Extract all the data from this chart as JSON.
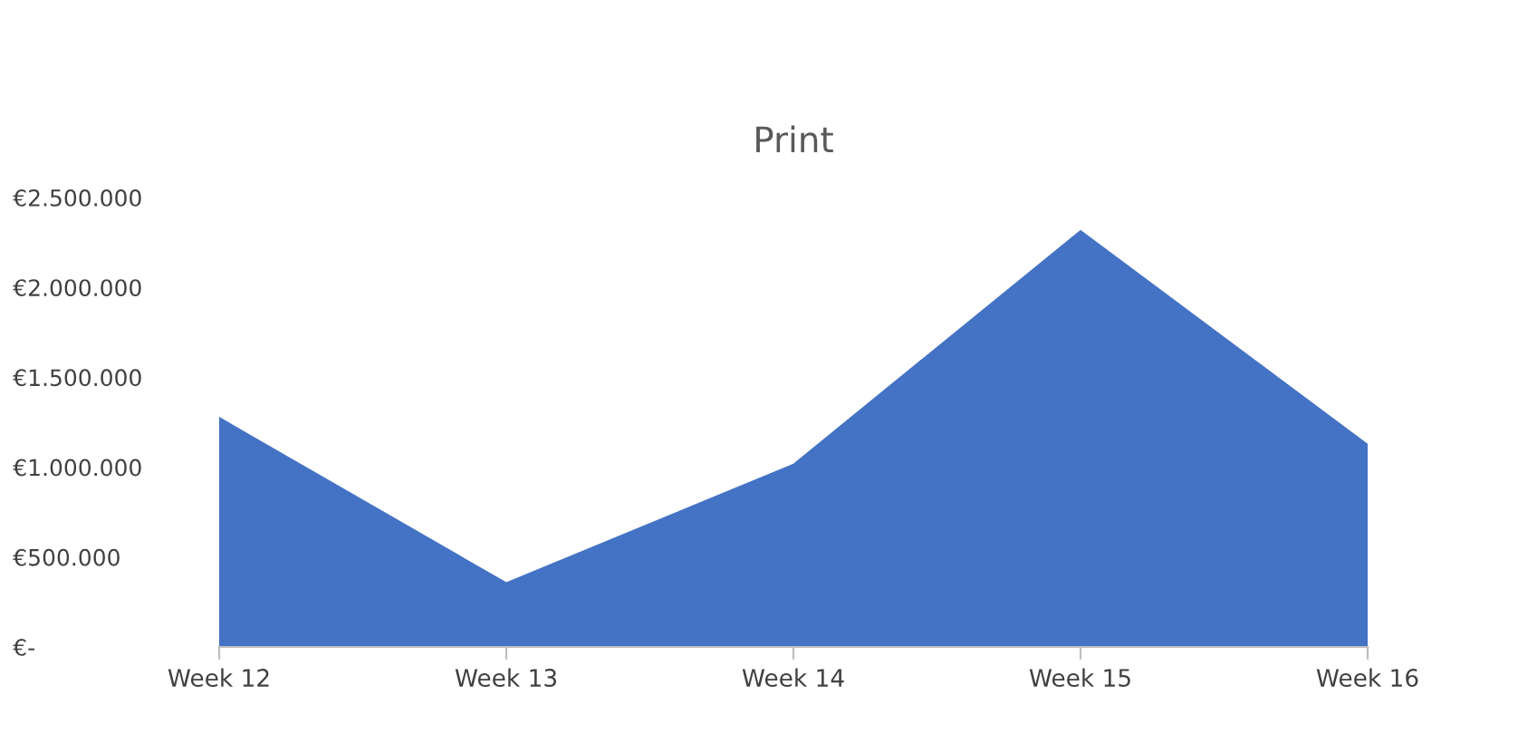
{
  "chart_data": {
    "type": "area",
    "title": "Print",
    "categories": [
      "Week 12",
      "Week 13",
      "Week 14",
      "Week 15",
      "Week 16"
    ],
    "values": [
      1280000,
      360000,
      1020000,
      2320000,
      1130000
    ],
    "color": "#4472c4",
    "ylim": [
      0,
      2500000
    ],
    "yticks": [
      {
        "value": 0,
        "label": "€-"
      },
      {
        "value": 500000,
        "label": "€500.000"
      },
      {
        "value": 1000000,
        "label": "€1.000.000"
      },
      {
        "value": 1500000,
        "label": "€1.500.000"
      },
      {
        "value": 2000000,
        "label": "€2.000.000"
      },
      {
        "value": 2500000,
        "label": "€2.500.000"
      }
    ],
    "grid": false,
    "legend": false
  }
}
